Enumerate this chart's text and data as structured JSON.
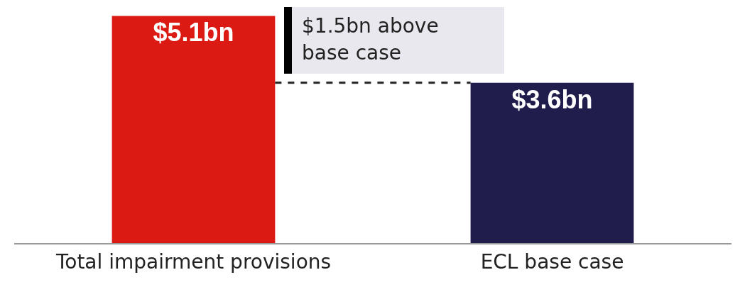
{
  "chart_data": {
    "type": "bar",
    "categories": [
      "Total impairment provisions",
      "ECL base case"
    ],
    "values": [
      5.1,
      3.6
    ],
    "colors": [
      "#dc1a14",
      "#201c4c"
    ],
    "value_labels": [
      "$5.1bn",
      "$3.6bn"
    ],
    "annotations": [
      "$1.5bn above base case"
    ],
    "ref_lines": [
      {
        "axis": "y",
        "value": 3.6,
        "color": "#222222",
        "line_style": "dashed"
      }
    ]
  }
}
